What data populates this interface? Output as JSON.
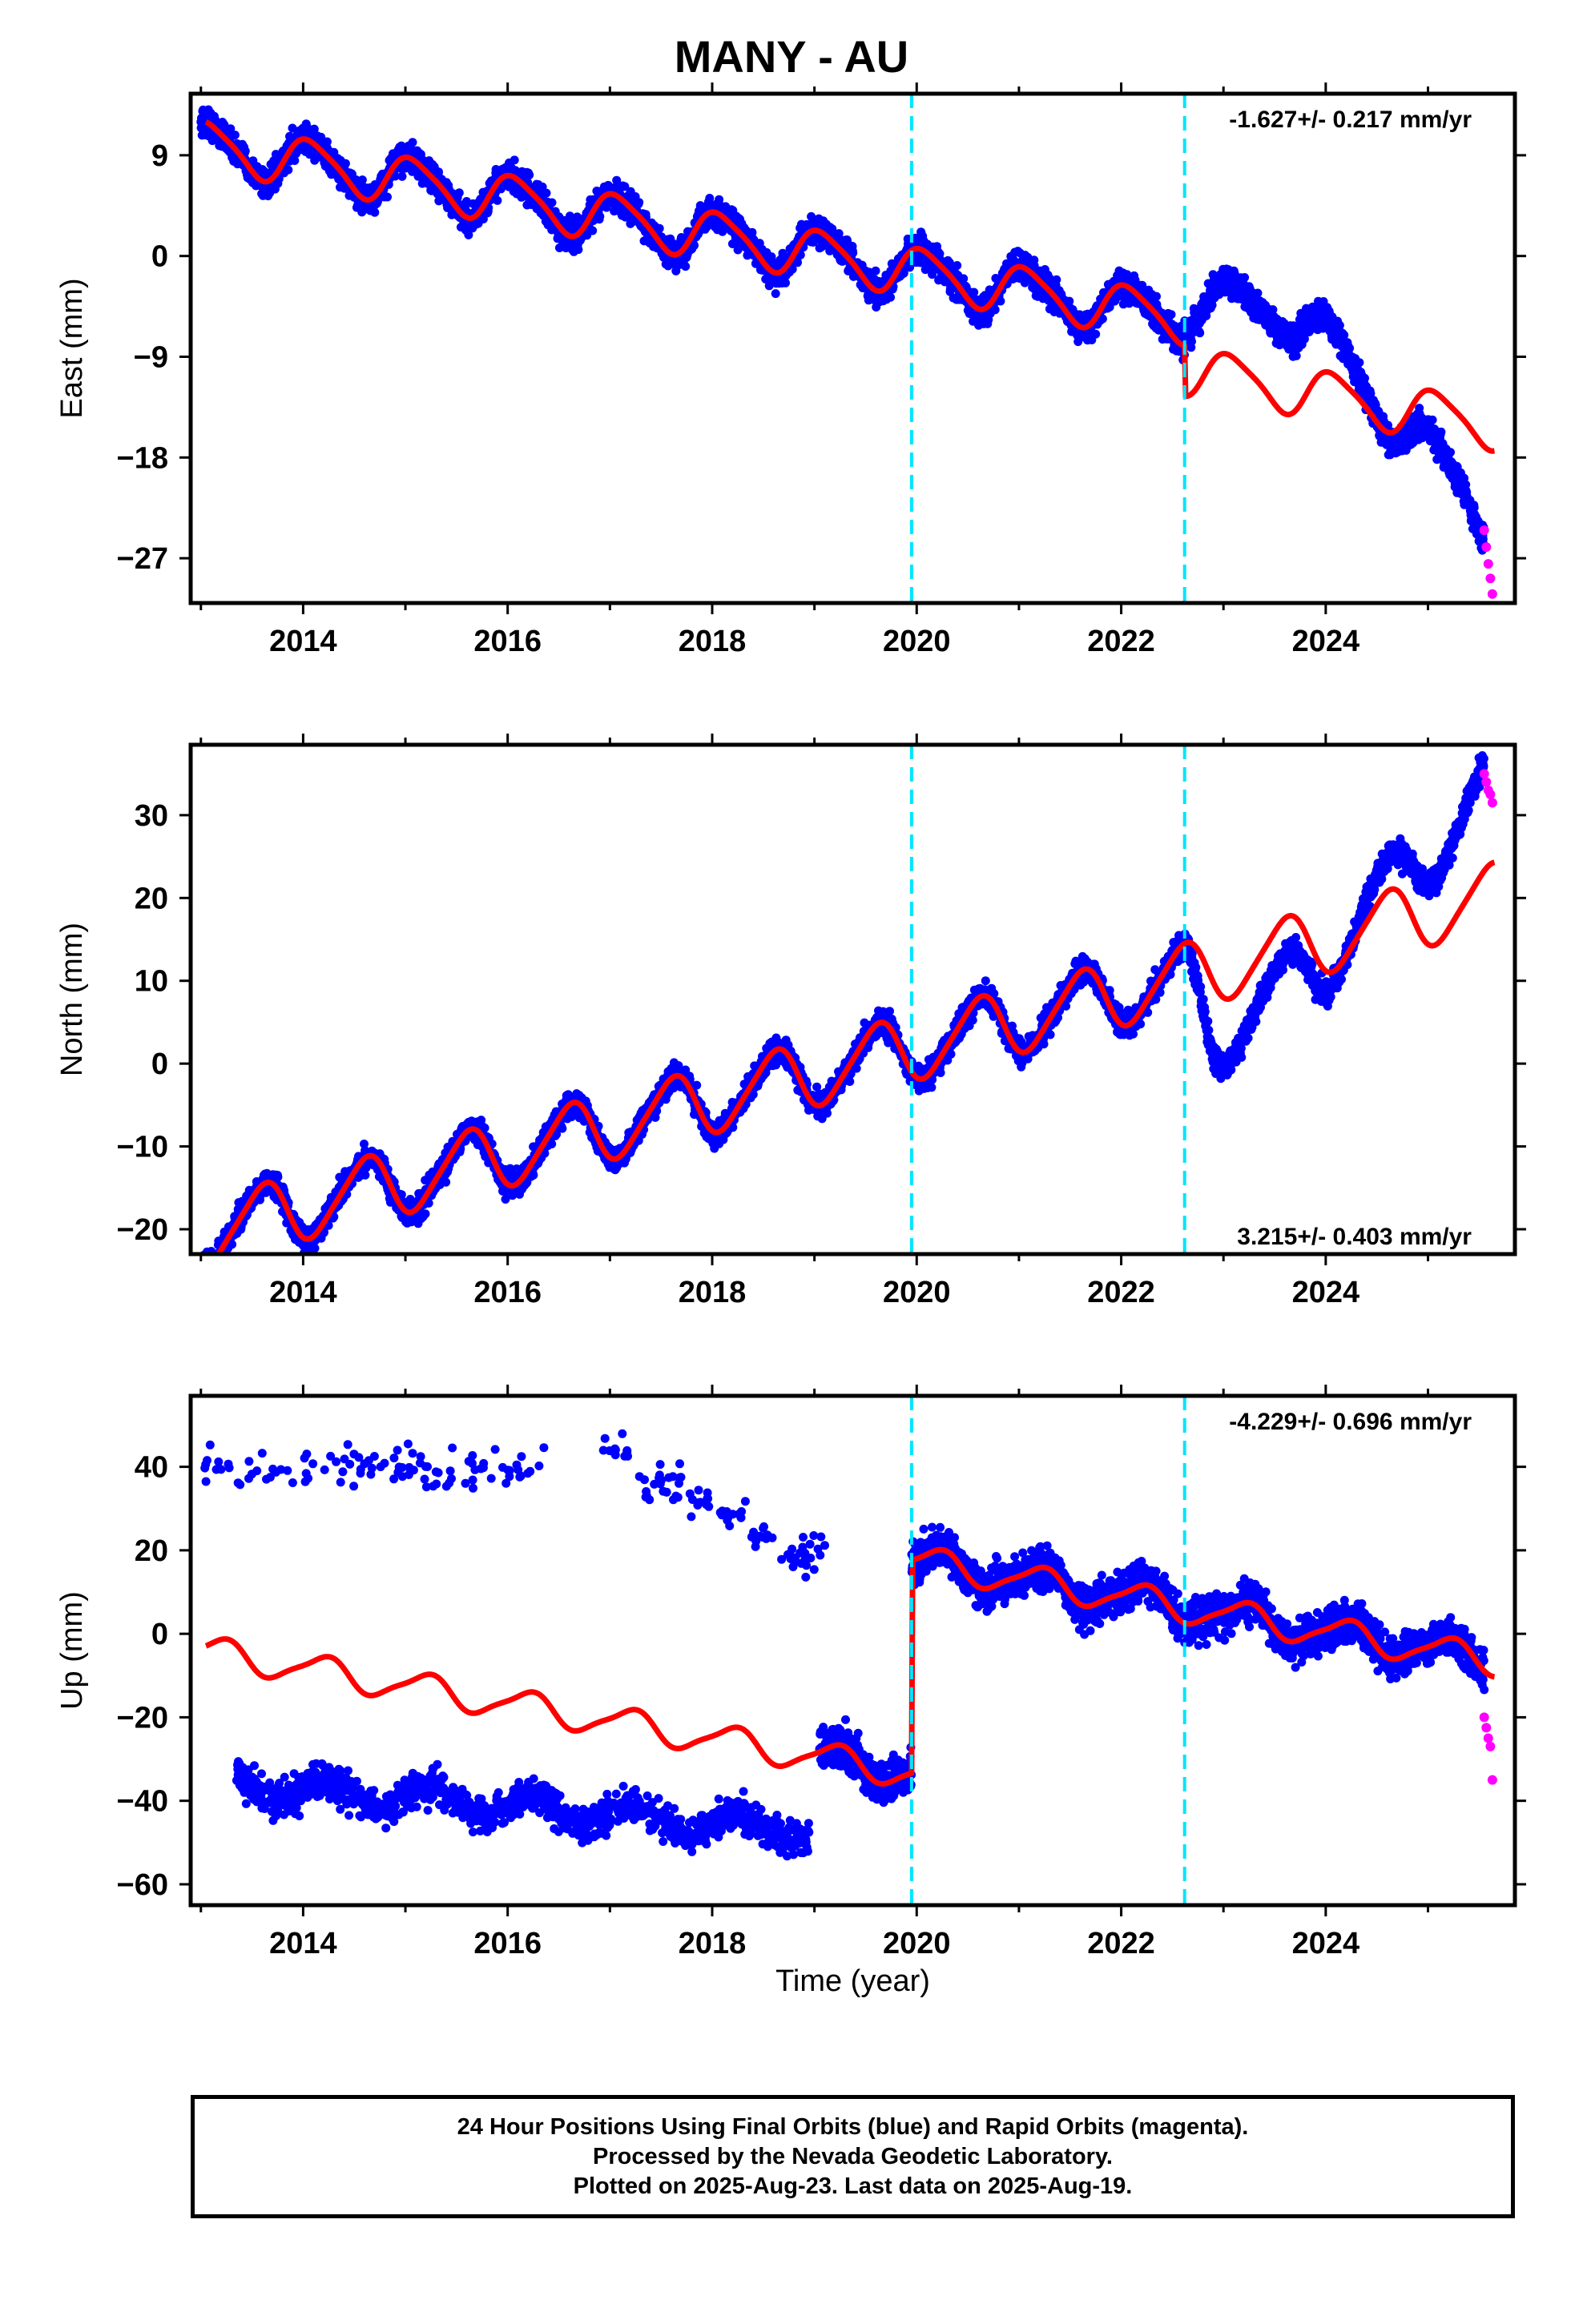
{
  "title": "MANY - AU",
  "xlabel": "Time (year)",
  "footer": [
    "24 Hour Positions Using Final Orbits (blue) and Rapid Orbits (magenta).",
    "Processed by the Nevada Geodetic Laboratory.",
    "Plotted on 2025-Aug-23. Last data on 2025-Aug-19."
  ],
  "colors": {
    "final_orbits": "#0000ff",
    "rapid_orbits": "#ff00ff",
    "model": "#ff0000",
    "event_lines": "#00e5ff"
  },
  "chart_data": [
    {
      "type": "scatter",
      "panel": "east",
      "ylabel": "East (mm)",
      "rate": "-1.627+/- 0.217 mm/yr",
      "rate_position": "top-right",
      "xlim": [
        2012.9,
        2025.85
      ],
      "ylim": [
        -31,
        14.5
      ],
      "x_ticks": [
        2014,
        2016,
        2018,
        2020,
        2022,
        2024
      ],
      "y_ticks": [
        9,
        0,
        -9,
        -18,
        -27
      ],
      "y_tick_labels": [
        "9",
        "0",
        "−9",
        "−18",
        "−27"
      ],
      "event_lines_x": [
        2019.95,
        2022.62
      ],
      "final_orbits_start": 2013.0,
      "final_orbits_end": 2025.55,
      "rapid_orbits_range": [
        2025.55,
        2025.63
      ],
      "model": {
        "offset": 10.0,
        "trend": -1.63,
        "annual_amp": 2.1,
        "annual_phase": 0.83,
        "semiannual_amp": 0.4,
        "semiannual_phase": 0.3,
        "steps": [
          {
            "x": 2022.62,
            "dy": -4.5
          }
        ]
      },
      "data_anomaly": [
        {
          "start": 2022.62,
          "end": 2024.2,
          "extra": [
            [
              2022.62,
              5.5
            ],
            [
              2023.0,
              6.5
            ],
            [
              2023.5,
              7.0
            ],
            [
              2023.9,
              6.0
            ],
            [
              2024.3,
              2.0
            ],
            [
              2024.8,
              -2.0
            ],
            [
              2025.2,
              -5.0
            ],
            [
              2025.6,
              -9.0
            ]
          ]
        }
      ],
      "noise": 0.9,
      "rapid_values": [
        -24.5,
        -26.0,
        -27.5,
        -28.8,
        -30.2
      ]
    },
    {
      "type": "scatter",
      "panel": "north",
      "ylabel": "North (mm)",
      "rate": "3.215+/- 0.403 mm/yr",
      "rate_position": "bottom-right",
      "xlim": [
        2012.9,
        2025.85
      ],
      "ylim": [
        -23,
        38.5
      ],
      "x_ticks": [
        2014,
        2016,
        2018,
        2020,
        2022,
        2024
      ],
      "y_ticks": [
        30,
        20,
        10,
        0,
        -10,
        -20
      ],
      "y_tick_labels": [
        "30",
        "20",
        "10",
        "0",
        "−10",
        "−20"
      ],
      "event_lines_x": [
        2019.95,
        2022.62
      ],
      "final_orbits_start": 2013.0,
      "final_orbits_end": 2025.55,
      "rapid_orbits_range": [
        2025.55,
        2025.63
      ],
      "model": {
        "offset": -20.5,
        "trend": 3.22,
        "annual_amp": 3.9,
        "annual_phase": 0.35,
        "semiannual_amp": 0.6,
        "semiannual_phase": 0.1,
        "steps": []
      },
      "data_anomaly": [
        {
          "start": 2022.62,
          "end": 2025.6,
          "extra": [
            [
              2022.62,
              0.0
            ],
            [
              2022.9,
              -9.0
            ],
            [
              2023.4,
              -5.0
            ],
            [
              2023.9,
              -3.5
            ],
            [
              2024.4,
              2.5
            ],
            [
              2025.0,
              7.0
            ],
            [
              2025.6,
              14.0
            ]
          ]
        }
      ],
      "noise": 1.1,
      "rapid_values": [
        35.0,
        34.0,
        33.0,
        32.5,
        31.5
      ]
    },
    {
      "type": "scatter",
      "panel": "up",
      "ylabel": "Up (mm)",
      "rate": "-4.229+/- 0.696 mm/yr",
      "rate_position": "top-right",
      "xlim": [
        2012.9,
        2025.85
      ],
      "ylim": [
        -65,
        57
      ],
      "x_ticks": [
        2014,
        2016,
        2018,
        2020,
        2022,
        2024
      ],
      "y_ticks": [
        40,
        20,
        0,
        -20,
        -40,
        -60
      ],
      "y_tick_labels": [
        "40",
        "20",
        "0",
        "−20",
        "−40",
        "−60"
      ],
      "event_lines_x": [
        2019.95,
        2022.62
      ],
      "final_orbits_start": 2019.05,
      "final_orbits_end": 2025.55,
      "rapid_orbits_range": [
        2025.55,
        2025.63
      ],
      "model": {
        "offset": -4.0,
        "trend": -4.23,
        "annual_amp": 3.5,
        "annual_phase": 0.95,
        "semiannual_amp": 0.8,
        "semiannual_phase": 0.2,
        "steps": [
          {
            "x": 2019.95,
            "dy": 51.0
          }
        ]
      },
      "early_cluster_low": {
        "start": 2013.35,
        "end": 2018.95,
        "center": -36,
        "slope": -2.0,
        "spread": 5
      },
      "early_cluster_high": {
        "start": 2013.0,
        "end": 2016.4,
        "center": 40,
        "spread": 6
      },
      "early_transition": [
        [
          2017.05,
          45.0
        ],
        [
          2017.4,
          35
        ],
        [
          2017.6,
          37
        ],
        [
          2017.9,
          32
        ],
        [
          2018.2,
          29
        ],
        [
          2018.5,
          23
        ],
        [
          2018.8,
          18
        ],
        [
          2019.0,
          20
        ]
      ],
      "noise": 3.5,
      "rapid_values": [
        -20.0,
        -22.5,
        -25.0,
        -27.0,
        -35.0
      ]
    }
  ]
}
